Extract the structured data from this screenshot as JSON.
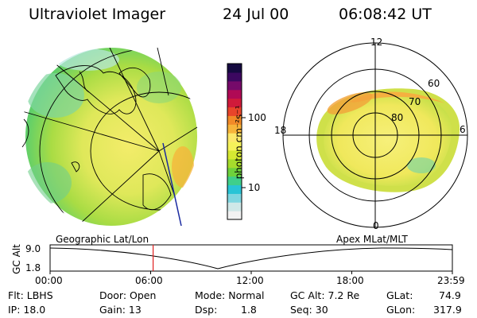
{
  "header": {
    "instrument": "Ultraviolet Imager",
    "date": "24 Jul 00",
    "time": "06:08:42 UT"
  },
  "colorbar": {
    "unit_label": "photon cm⁻²s⁻¹",
    "ticks": [
      "100",
      "10"
    ],
    "colors": [
      "#f2f2f2",
      "#cfe8e8",
      "#7fd6e0",
      "#29c4d6",
      "#3fcf8a",
      "#6ed23c",
      "#a6dc2c",
      "#d6e832",
      "#f5f25a",
      "#fde86a",
      "#f7b43a",
      "#f28a28",
      "#e8452a",
      "#d01a3a",
      "#b00a55",
      "#760a6a",
      "#3c0860",
      "#150a40"
    ]
  },
  "geo_panel": {
    "label": "Geographic Lat/Lon"
  },
  "polar_panel": {
    "label": "Apex MLat/MLT",
    "mlt_labels": {
      "top": "12",
      "left": "18",
      "right": "6",
      "bottom": "0"
    },
    "lat_labels": [
      "60",
      "70",
      "80"
    ]
  },
  "orbit_strip": {
    "y_label": "GC Alt",
    "y_ticks": [
      "9.0",
      "1.8"
    ],
    "x_ticks": [
      "00:00",
      "06:00",
      "12:00",
      "18:00",
      "23:59"
    ],
    "current_time_fraction": 0.2561
  },
  "info": {
    "flt": "Flt: LBHS",
    "ip": "IP: 18.0",
    "door": "Door: Open",
    "gain": "Gain: 13",
    "mode": "Mode: Normal",
    "dsp_label": "Dsp:",
    "dsp_value": "1.8",
    "gc_alt": "GC Alt: 7.2 Re",
    "seq": "Seq: 30",
    "glat_label": "GLat:",
    "glat_value": "74.9",
    "glon_label": "GLon:",
    "glon_value": "317.9"
  }
}
